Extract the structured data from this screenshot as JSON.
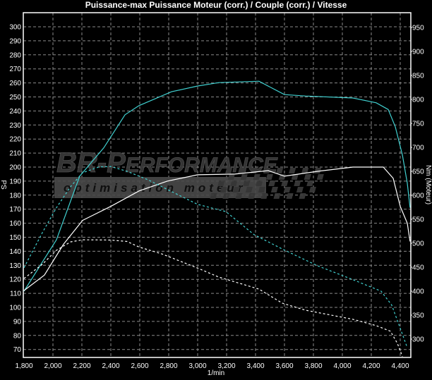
{
  "chart_data": {
    "type": "line",
    "title": "Puissance-max Puissance Moteur (corr.) / Couple (corr.) / Vitesse",
    "xlabel": "1/min",
    "ylabel_left": "PS",
    "ylabel_right": "Nm (Moteur)",
    "xlim": [
      1800,
      4470
    ],
    "ylim_left": [
      60,
      310
    ],
    "ylim_right": [
      275,
      975
    ],
    "x_ticks": [
      "1,800",
      "2,000",
      "2,200",
      "2,400",
      "2,600",
      "2,800",
      "3,000",
      "3,200",
      "3,400",
      "3,600",
      "3,800",
      "4,000",
      "4,200",
      "4,400"
    ],
    "y_left_ticks": [
      70,
      80,
      90,
      100,
      110,
      120,
      130,
      140,
      150,
      160,
      170,
      180,
      190,
      200,
      210,
      220,
      230,
      240,
      250,
      260,
      270,
      280,
      290,
      300
    ],
    "y_right_ticks": [
      300,
      350,
      400,
      450,
      500,
      550,
      600,
      650,
      700,
      750,
      800,
      850,
      900,
      950
    ],
    "grid": true,
    "background": "#000000",
    "series": [
      {
        "axis": "right",
        "color": "#40d0d0",
        "style": "solid",
        "x": [
          1800,
          2024,
          2185,
          2351,
          2498,
          2595,
          2820,
          3000,
          3146,
          3424,
          3600,
          3746,
          4073,
          4234,
          4317,
          4366,
          4415,
          4449,
          4468
        ],
        "y": [
          400,
          507,
          640,
          699,
          768,
          787,
          816,
          828,
          835,
          838,
          810,
          807,
          803,
          793,
          779,
          743,
          684,
          625,
          574
        ]
      },
      {
        "axis": "left",
        "color": "#ffffff",
        "style": "solid",
        "x": [
          1800,
          1941,
          2073,
          2205,
          2400,
          2595,
          2790,
          3000,
          3259,
          3488,
          3600,
          3829,
          4073,
          4283,
          4351,
          4400,
          4449,
          4468
        ],
        "y": [
          112,
          123,
          145,
          162,
          172,
          183,
          190,
          194.5,
          195,
          197.5,
          193.5,
          197,
          200,
          200,
          192,
          172,
          160,
          147
        ]
      },
      {
        "axis": "right",
        "color": "#40d0d0",
        "style": "dashed",
        "x": [
          1800,
          1927,
          2024,
          2122,
          2205,
          2317,
          2400,
          2512,
          2659,
          2805,
          3000,
          3195,
          3390,
          3585,
          3829,
          4073,
          4268,
          4341,
          4390,
          4449
        ],
        "y": [
          449,
          522,
          574,
          618,
          647,
          659,
          660,
          650,
          632,
          610,
          581,
          566,
          518,
          488,
          453,
          424,
          400,
          371,
          331,
          282
        ]
      },
      {
        "axis": "left",
        "color": "#ffffff",
        "style": "dashed",
        "x": [
          1800,
          1927,
          2024,
          2122,
          2205,
          2400,
          2512,
          2595,
          2756,
          3000,
          3146,
          3424,
          3585,
          3746,
          4073,
          4234,
          4332,
          4380,
          4415
        ],
        "y": [
          120.6,
          130.7,
          140.7,
          146.7,
          148.2,
          148,
          147,
          143,
          138,
          128,
          121.6,
          113,
          103,
          98,
          91.5,
          87,
          83,
          74.4,
          65
        ]
      }
    ]
  },
  "watermark": {
    "brand": "BR-Performance",
    "tagline": "optimisation moteur"
  }
}
